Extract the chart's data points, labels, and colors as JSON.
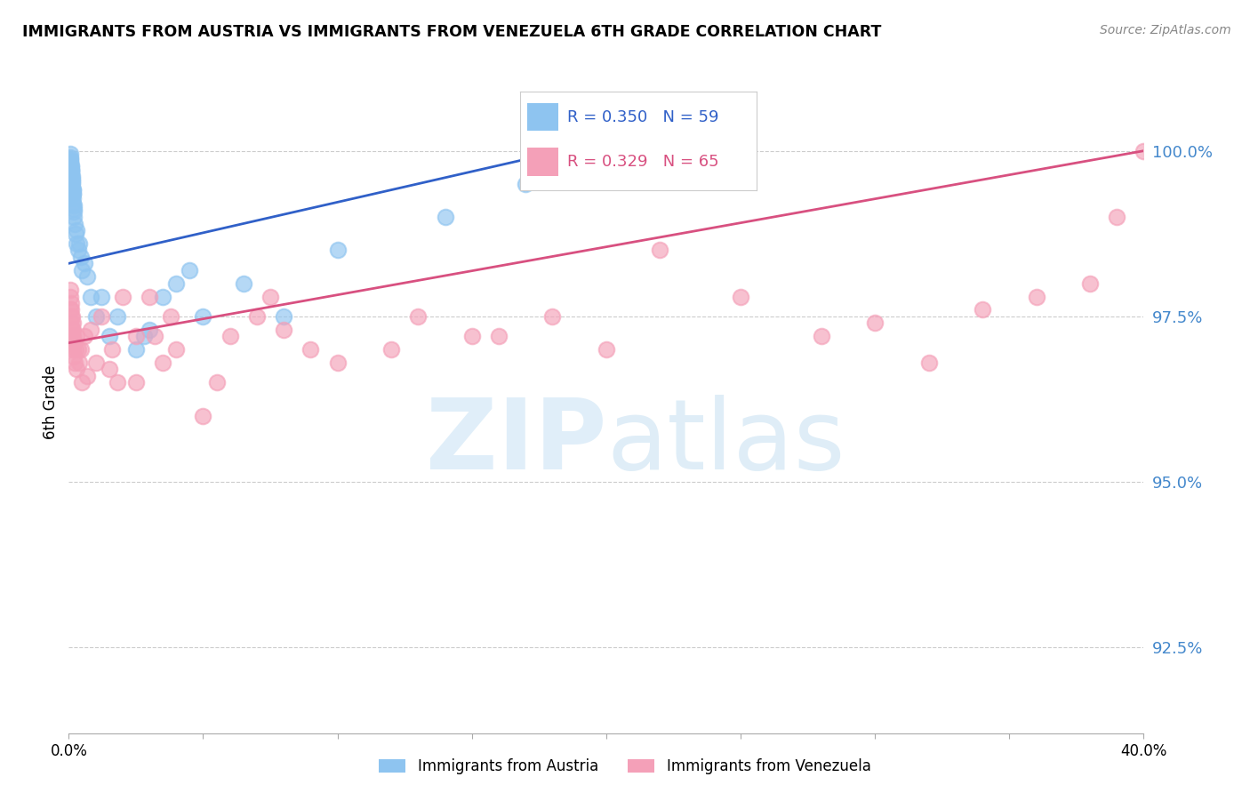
{
  "title": "IMMIGRANTS FROM AUSTRIA VS IMMIGRANTS FROM VENEZUELA 6TH GRADE CORRELATION CHART",
  "source": "Source: ZipAtlas.com",
  "ylabel": "6th Grade",
  "ytick_values": [
    92.5,
    95.0,
    97.5,
    100.0
  ],
  "xmin": 0.0,
  "xmax": 40.0,
  "ymin": 91.2,
  "ymax": 101.2,
  "legend_austria": "Immigrants from Austria",
  "legend_venezuela": "Immigrants from Venezuela",
  "R_austria": "R = 0.350",
  "N_austria": "N = 59",
  "R_venezuela": "R = 0.329",
  "N_venezuela": "N = 65",
  "austria_color": "#8ec4f0",
  "venezuela_color": "#f4a0b8",
  "austria_line_color": "#3060c8",
  "venezuela_line_color": "#d85080",
  "austria_x": [
    0.05,
    0.05,
    0.05,
    0.06,
    0.06,
    0.07,
    0.07,
    0.08,
    0.08,
    0.09,
    0.09,
    0.1,
    0.1,
    0.1,
    0.1,
    0.11,
    0.11,
    0.12,
    0.12,
    0.13,
    0.13,
    0.14,
    0.15,
    0.15,
    0.16,
    0.16,
    0.17,
    0.18,
    0.18,
    0.2,
    0.2,
    0.22,
    0.25,
    0.28,
    0.3,
    0.35,
    0.4,
    0.45,
    0.5,
    0.6,
    0.7,
    0.8,
    1.0,
    1.2,
    1.5,
    1.8,
    2.5,
    3.0,
    3.5,
    4.0,
    5.0,
    6.5,
    8.0,
    10.0,
    14.0,
    17.0,
    20.0,
    2.8,
    4.5
  ],
  "austria_y": [
    99.85,
    99.9,
    99.95,
    99.8,
    99.88,
    99.75,
    99.82,
    99.7,
    99.78,
    99.65,
    99.72,
    99.6,
    99.68,
    99.72,
    99.76,
    99.55,
    99.62,
    99.5,
    99.58,
    99.45,
    99.52,
    99.4,
    99.35,
    99.42,
    99.28,
    99.35,
    99.2,
    99.12,
    99.18,
    99.0,
    99.08,
    98.9,
    98.75,
    98.6,
    98.8,
    98.5,
    98.6,
    98.4,
    98.2,
    98.3,
    98.1,
    97.8,
    97.5,
    97.8,
    97.2,
    97.5,
    97.0,
    97.3,
    97.8,
    98.0,
    97.5,
    98.0,
    97.5,
    98.5,
    99.0,
    99.5,
    99.8,
    97.2,
    98.2
  ],
  "venezuela_x": [
    0.05,
    0.06,
    0.07,
    0.08,
    0.09,
    0.1,
    0.1,
    0.11,
    0.12,
    0.13,
    0.14,
    0.15,
    0.15,
    0.16,
    0.17,
    0.18,
    0.2,
    0.22,
    0.25,
    0.28,
    0.3,
    0.35,
    0.4,
    0.45,
    0.5,
    0.6,
    0.7,
    0.8,
    1.0,
    1.2,
    1.5,
    1.8,
    2.0,
    2.5,
    3.0,
    3.5,
    4.0,
    5.0,
    6.0,
    7.0,
    8.0,
    10.0,
    12.0,
    15.0,
    18.0,
    20.0,
    25.0,
    28.0,
    30.0,
    32.0,
    34.0,
    36.0,
    38.0,
    39.0,
    40.0,
    2.5,
    3.8,
    5.5,
    7.5,
    1.6,
    3.2,
    9.0,
    13.0,
    22.0,
    16.0
  ],
  "venezuela_y": [
    97.8,
    97.6,
    97.9,
    97.5,
    97.7,
    97.4,
    97.6,
    97.3,
    97.5,
    97.2,
    97.4,
    97.1,
    97.3,
    97.0,
    97.2,
    96.9,
    97.1,
    96.8,
    97.0,
    96.7,
    97.2,
    97.0,
    96.8,
    97.0,
    96.5,
    97.2,
    96.6,
    97.3,
    96.8,
    97.5,
    96.7,
    96.5,
    97.8,
    96.5,
    97.8,
    96.8,
    97.0,
    96.0,
    97.2,
    97.5,
    97.3,
    96.8,
    97.0,
    97.2,
    97.5,
    97.0,
    97.8,
    97.2,
    97.4,
    96.8,
    97.6,
    97.8,
    98.0,
    99.0,
    100.0,
    97.2,
    97.5,
    96.5,
    97.8,
    97.0,
    97.2,
    97.0,
    97.5,
    98.5,
    97.2
  ],
  "austria_trend_x0": 0.0,
  "austria_trend_y0": 98.3,
  "austria_trend_x1": 20.0,
  "austria_trend_y1": 100.15,
  "venezuela_trend_x0": 0.0,
  "venezuela_trend_y0": 97.1,
  "venezuela_trend_x1": 40.0,
  "venezuela_trend_y1": 100.0
}
